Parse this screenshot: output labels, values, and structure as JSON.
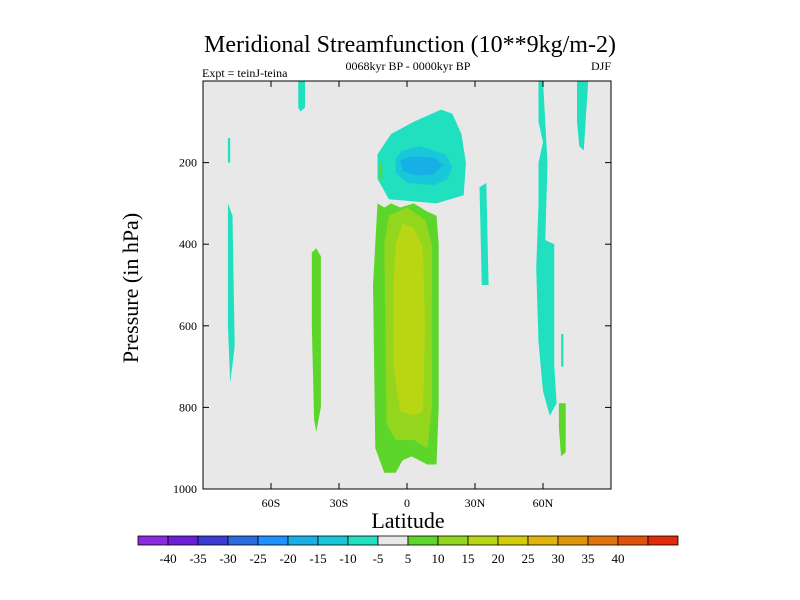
{
  "chart_data": {
    "type": "contour",
    "title": "Meridional Streamfunction (10**9kg/m-2)",
    "subtitle_left": "Expt = teinJ-teina",
    "subtitle_center": "0068kyr BP - 0000kyr BP",
    "subtitle_right": "DJF",
    "xlabel": "Latitude",
    "ylabel": "Pressure (in hPa)",
    "xlim": [
      -90,
      90
    ],
    "ylim": [
      1000,
      0
    ],
    "x_ticks": [
      {
        "value": -60,
        "label": "60S"
      },
      {
        "value": -30,
        "label": "30S"
      },
      {
        "value": 0,
        "label": "0"
      },
      {
        "value": 30,
        "label": "30N"
      },
      {
        "value": 60,
        "label": "60N"
      }
    ],
    "y_ticks": [
      {
        "value": 200,
        "label": "200"
      },
      {
        "value": 400,
        "label": "400"
      },
      {
        "value": 600,
        "label": "600"
      },
      {
        "value": 800,
        "label": "800"
      },
      {
        "value": 1000,
        "label": "1000"
      }
    ],
    "colorbar": {
      "colors": [
        "#8a2be2",
        "#6a1fd9",
        "#3b3bd6",
        "#2b6be0",
        "#1e90ff",
        "#17b0e6",
        "#19c8d8",
        "#20e0c0",
        "#e8e8e8",
        "#5cd62a",
        "#94d61e",
        "#b8d614",
        "#d4cc0a",
        "#e0b40a",
        "#e0960a",
        "#e0740a",
        "#e0520a",
        "#e02a0a"
      ],
      "labels": [
        "-40",
        "-35",
        "-30",
        "-25",
        "-20",
        "-15",
        "-10",
        "-5",
        "5",
        "10",
        "15",
        "20",
        "25",
        "30",
        "35",
        "40"
      ]
    },
    "regions": [
      {
        "level": -5,
        "color": "#20e0c0",
        "polygon": [
          [
            -48,
            0
          ],
          [
            -45,
            0
          ],
          [
            -45,
            65
          ],
          [
            -47,
            75
          ],
          [
            -48,
            65
          ]
        ]
      },
      {
        "level": -5,
        "color": "#20e0c0",
        "polygon": [
          [
            -79,
            140
          ],
          [
            -78,
            140
          ],
          [
            -78,
            200
          ],
          [
            -79,
            200
          ]
        ]
      },
      {
        "level": -5,
        "color": "#20e0c0",
        "polygon": [
          [
            -79,
            300
          ],
          [
            -77,
            330
          ],
          [
            -76,
            650
          ],
          [
            -78,
            740
          ],
          [
            -79,
            600
          ]
        ]
      },
      {
        "level": -5,
        "color": "#20e0c0",
        "polygon": [
          [
            -13,
            180
          ],
          [
            -7,
            130
          ],
          [
            3,
            100
          ],
          [
            15,
            70
          ],
          [
            20,
            80
          ],
          [
            24,
            130
          ],
          [
            26,
            200
          ],
          [
            25,
            280
          ],
          [
            13,
            300
          ],
          [
            -8,
            290
          ],
          [
            -13,
            240
          ]
        ]
      },
      {
        "level": -10,
        "color": "#19c8d8",
        "polygon": [
          [
            -5,
            190
          ],
          [
            -2,
            170
          ],
          [
            6,
            160
          ],
          [
            17,
            180
          ],
          [
            20,
            210
          ],
          [
            18,
            240
          ],
          [
            12,
            255
          ],
          [
            0,
            250
          ],
          [
            -5,
            225
          ]
        ]
      },
      {
        "level": -15,
        "color": "#17b0e6",
        "polygon": [
          [
            -3,
            195
          ],
          [
            2,
            185
          ],
          [
            12,
            188
          ],
          [
            16,
            205
          ],
          [
            12,
            228
          ],
          [
            4,
            232
          ],
          [
            -2,
            220
          ]
        ]
      },
      {
        "level": -5,
        "color": "#20e0c0",
        "polygon": [
          [
            32,
            260
          ],
          [
            35,
            250
          ],
          [
            36,
            500
          ],
          [
            33,
            500
          ]
        ]
      },
      {
        "level": -5,
        "color": "#20e0c0",
        "polygon": [
          [
            57,
            0
          ],
          [
            60,
            0
          ],
          [
            62,
            200
          ],
          [
            61,
            390
          ],
          [
            65,
            400
          ],
          [
            65,
            700
          ],
          [
            66,
            790
          ],
          [
            63,
            820
          ],
          [
            60,
            760
          ],
          [
            58,
            640
          ],
          [
            57,
            460
          ],
          [
            58,
            300
          ],
          [
            58,
            200
          ],
          [
            60,
            150
          ],
          [
            58,
            100
          ],
          [
            58,
            0
          ]
        ]
      },
      {
        "level": -5,
        "color": "#20e0c0",
        "polygon": [
          [
            75,
            0
          ],
          [
            80,
            0
          ],
          [
            79,
            80
          ],
          [
            78,
            170
          ],
          [
            76,
            160
          ],
          [
            75,
            100
          ]
        ]
      },
      {
        "level": -5,
        "color": "#20e0c0",
        "polygon": [
          [
            68,
            620
          ],
          [
            69,
            620
          ],
          [
            69,
            700
          ],
          [
            68,
            700
          ]
        ]
      },
      {
        "level": 5,
        "color": "#5cd62a",
        "polygon": [
          [
            -13,
            300
          ],
          [
            -10,
            310
          ],
          [
            -7,
            300
          ],
          [
            -3,
            310
          ],
          [
            3,
            300
          ],
          [
            9,
            320
          ],
          [
            13,
            330
          ],
          [
            14,
            400
          ],
          [
            14,
            800
          ],
          [
            13,
            940
          ],
          [
            9,
            940
          ],
          [
            2,
            920
          ],
          [
            -2,
            930
          ],
          [
            -5,
            960
          ],
          [
            -10,
            960
          ],
          [
            -14,
            900
          ],
          [
            -15,
            500
          ]
        ]
      },
      {
        "level": 5,
        "color": "#5cd62a",
        "polygon": [
          [
            -42,
            420
          ],
          [
            -40,
            410
          ],
          [
            -38,
            430
          ],
          [
            -38,
            800
          ],
          [
            -40,
            860
          ],
          [
            -41,
            830
          ],
          [
            -42,
            600
          ]
        ]
      },
      {
        "level": 5,
        "color": "#5cd62a",
        "polygon": [
          [
            -12,
            200
          ],
          [
            -11,
            200
          ],
          [
            -11,
            240
          ],
          [
            -12,
            240
          ]
        ]
      },
      {
        "level": 5,
        "color": "#5cd62a",
        "polygon": [
          [
            67,
            790
          ],
          [
            70,
            790
          ],
          [
            70,
            910
          ],
          [
            68,
            920
          ],
          [
            67,
            850
          ]
        ]
      },
      {
        "level": 10,
        "color": "#94d61e",
        "polygon": [
          [
            -8,
            330
          ],
          [
            0,
            310
          ],
          [
            8,
            340
          ],
          [
            11,
            400
          ],
          [
            11,
            800
          ],
          [
            9,
            900
          ],
          [
            3,
            880
          ],
          [
            -5,
            880
          ],
          [
            -9,
            840
          ],
          [
            -10,
            400
          ]
        ]
      },
      {
        "level": 15,
        "color": "#b8d614",
        "polygon": [
          [
            -5,
            400
          ],
          [
            -2,
            350
          ],
          [
            3,
            360
          ],
          [
            7,
            410
          ],
          [
            8,
            600
          ],
          [
            7,
            810
          ],
          [
            3,
            820
          ],
          [
            -3,
            810
          ],
          [
            -6,
            700
          ],
          [
            -6,
            500
          ]
        ]
      }
    ]
  }
}
